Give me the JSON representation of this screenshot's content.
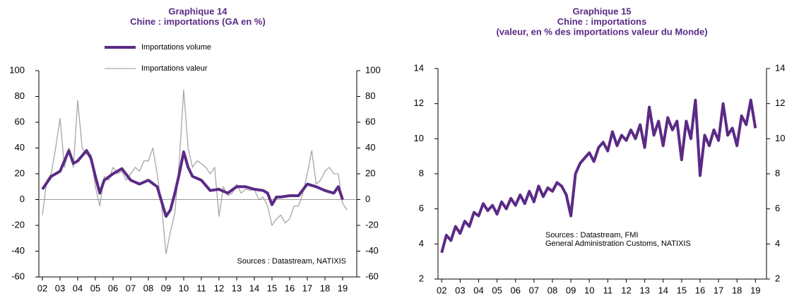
{
  "chart_data": [
    {
      "type": "line",
      "title": [
        "Graphique 14",
        "Chine : importations (GA en %)"
      ],
      "legend": "top",
      "zero_line": true,
      "xlim": [
        1.8,
        19.8
      ],
      "xticks": [
        {
          "value": 2,
          "label": "02"
        },
        {
          "value": 3,
          "label": "03"
        },
        {
          "value": 4,
          "label": "04"
        },
        {
          "value": 5,
          "label": "05"
        },
        {
          "value": 6,
          "label": "06"
        },
        {
          "value": 7,
          "label": "07"
        },
        {
          "value": 8,
          "label": "08"
        },
        {
          "value": 9,
          "label": "09"
        },
        {
          "value": 10,
          "label": "10"
        },
        {
          "value": 11,
          "label": "11"
        },
        {
          "value": 12,
          "label": "12"
        },
        {
          "value": 13,
          "label": "13"
        },
        {
          "value": 14,
          "label": "14"
        },
        {
          "value": 15,
          "label": "15"
        },
        {
          "value": 16,
          "label": "16"
        },
        {
          "value": 17,
          "label": "17"
        },
        {
          "value": 18,
          "label": "18"
        },
        {
          "value": 19,
          "label": "19"
        }
      ],
      "ylim": [
        -60,
        100
      ],
      "yticks": [
        -60,
        -40,
        -20,
        0,
        20,
        40,
        60,
        80,
        100
      ],
      "y2lim": [
        -60,
        100
      ],
      "y2ticks": [
        -60,
        -40,
        -20,
        0,
        20,
        40,
        60,
        80,
        100
      ],
      "annotation": [
        "Sources : Datastream, NATIXIS"
      ],
      "series": [
        {
          "name": "Importations volume",
          "color": "#5b2a86",
          "width": 4,
          "x": [
            2,
            2.5,
            3,
            3.5,
            3.75,
            4,
            4.5,
            4.75,
            5,
            5.25,
            5.5,
            6,
            6.5,
            7,
            7.5,
            8,
            8.5,
            9,
            9.25,
            9.5,
            9.75,
            10,
            10.25,
            10.5,
            11,
            11.5,
            12,
            12.5,
            13,
            13.5,
            14,
            14.5,
            14.75,
            15,
            15.25,
            15.5,
            16,
            16.5,
            17,
            17.5,
            18,
            18.5,
            18.75,
            19
          ],
          "values": [
            8,
            18,
            22,
            38,
            28,
            30,
            38,
            32,
            18,
            5,
            15,
            20,
            24,
            15,
            12,
            15,
            10,
            -13,
            -8,
            5,
            20,
            37,
            25,
            18,
            15,
            7,
            8,
            5,
            10,
            10,
            8,
            7,
            5,
            -4,
            2,
            2,
            3,
            3,
            12,
            10,
            7,
            5,
            10,
            0
          ]
        },
        {
          "name": "Importations valeur",
          "color": "#a6a6a6",
          "width": 1.3,
          "x": [
            2,
            2.25,
            2.5,
            2.75,
            3,
            3.25,
            3.5,
            3.75,
            4,
            4.25,
            4.5,
            4.75,
            5,
            5.25,
            5.5,
            5.75,
            6,
            6.25,
            6.5,
            6.75,
            7,
            7.25,
            7.5,
            7.75,
            8,
            8.25,
            8.5,
            8.75,
            9,
            9.25,
            9.5,
            9.75,
            10,
            10.25,
            10.5,
            10.75,
            11,
            11.25,
            11.5,
            11.75,
            12,
            12.25,
            12.5,
            12.75,
            13,
            13.25,
            13.5,
            13.75,
            14,
            14.25,
            14.5,
            14.75,
            15,
            15.25,
            15.5,
            15.75,
            16,
            16.25,
            16.5,
            16.75,
            17,
            17.25,
            17.5,
            17.75,
            18,
            18.25,
            18.5,
            18.75,
            19,
            19.25
          ],
          "values": [
            -12,
            15,
            20,
            40,
            63,
            25,
            40,
            25,
            77,
            40,
            35,
            35,
            10,
            -5,
            18,
            15,
            25,
            20,
            22,
            15,
            20,
            25,
            22,
            30,
            30,
            40,
            20,
            -5,
            -42,
            -25,
            -10,
            30,
            85,
            40,
            25,
            30,
            28,
            25,
            20,
            25,
            -13,
            10,
            3,
            5,
            12,
            5,
            8,
            7,
            8,
            0,
            2,
            -5,
            -20,
            -15,
            -12,
            -18,
            -15,
            -5,
            -5,
            5,
            20,
            38,
            12,
            15,
            22,
            25,
            20,
            20,
            -3,
            -8
          ]
        }
      ]
    },
    {
      "type": "line",
      "title": [
        "Graphique 15",
        "Chine : importations",
        "(valeur, en % des importations valeur du Monde)"
      ],
      "xlim": [
        1.8,
        19.6
      ],
      "xticks": [
        {
          "value": 2,
          "label": "02"
        },
        {
          "value": 3,
          "label": "03"
        },
        {
          "value": 4,
          "label": "04"
        },
        {
          "value": 5,
          "label": "05"
        },
        {
          "value": 6,
          "label": "06"
        },
        {
          "value": 7,
          "label": "07"
        },
        {
          "value": 8,
          "label": "08"
        },
        {
          "value": 9,
          "label": "09"
        },
        {
          "value": 10,
          "label": "10"
        },
        {
          "value": 11,
          "label": "11"
        },
        {
          "value": 12,
          "label": "12"
        },
        {
          "value": 13,
          "label": "13"
        },
        {
          "value": 14,
          "label": "14"
        },
        {
          "value": 15,
          "label": "15"
        },
        {
          "value": 16,
          "label": "16"
        },
        {
          "value": 17,
          "label": "17"
        },
        {
          "value": 18,
          "label": "18"
        },
        {
          "value": 19,
          "label": "19"
        }
      ],
      "ylim": [
        2,
        14
      ],
      "yticks": [
        2,
        4,
        6,
        8,
        10,
        12,
        14
      ],
      "y2lim": [
        2,
        14
      ],
      "y2ticks": [
        2,
        4,
        6,
        8,
        10,
        12,
        14
      ],
      "annotation": [
        "Sources : Datastream, FMI",
        "General Administration Customs, NATIXIS"
      ],
      "series": [
        {
          "name": "Importations",
          "color": "#5b2a86",
          "width": 4,
          "x": [
            2,
            2.25,
            2.5,
            2.75,
            3,
            3.25,
            3.5,
            3.75,
            4,
            4.25,
            4.5,
            4.75,
            5,
            5.25,
            5.5,
            5.75,
            6,
            6.25,
            6.5,
            6.75,
            7,
            7.25,
            7.5,
            7.75,
            8,
            8.25,
            8.5,
            8.75,
            9,
            9.25,
            9.5,
            9.75,
            10,
            10.25,
            10.5,
            10.75,
            11,
            11.25,
            11.5,
            11.75,
            12,
            12.25,
            12.5,
            12.75,
            13,
            13.25,
            13.5,
            13.75,
            14,
            14.25,
            14.5,
            14.75,
            15,
            15.25,
            15.5,
            15.75,
            16,
            16.25,
            16.5,
            16.75,
            17,
            17.25,
            17.5,
            17.75,
            18,
            18.25,
            18.5,
            18.75,
            19
          ],
          "values": [
            3.5,
            4.5,
            4.2,
            5.0,
            4.6,
            5.3,
            5.0,
            5.8,
            5.6,
            6.3,
            5.9,
            6.2,
            5.7,
            6.4,
            6.0,
            6.6,
            6.2,
            6.8,
            6.3,
            7.0,
            6.4,
            7.3,
            6.7,
            7.2,
            7.0,
            7.5,
            7.3,
            6.8,
            5.6,
            8.0,
            8.6,
            8.9,
            9.2,
            8.7,
            9.5,
            9.8,
            9.3,
            10.4,
            9.6,
            10.2,
            9.9,
            10.5,
            10.0,
            10.8,
            9.5,
            11.8,
            10.2,
            11.0,
            9.6,
            11.2,
            10.5,
            11.0,
            8.8,
            11.0,
            10.0,
            12.2,
            7.9,
            10.2,
            9.6,
            10.5,
            9.9,
            12.0,
            10.2,
            10.6,
            9.6,
            11.3,
            10.8,
            12.2,
            10.6
          ]
        }
      ]
    }
  ]
}
